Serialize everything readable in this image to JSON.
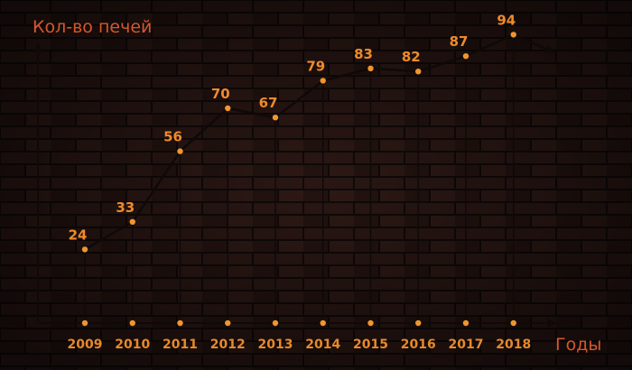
{
  "colors": {
    "line": "#0f0908",
    "marker": "#f0962e",
    "label": "#f08a2a",
    "tick": "#e7892c",
    "title": "#d6572c",
    "brick_dark": "#1e120f",
    "brick_mortar": "#0f0a09"
  },
  "chart_data": {
    "type": "line",
    "title": "",
    "xlabel": "Годы",
    "ylabel": "Кол-во печей",
    "categories": [
      "2009",
      "2010",
      "2011",
      "2012",
      "2013",
      "2014",
      "2015",
      "2016",
      "2017",
      "2018"
    ],
    "series": [
      {
        "values": [
          24,
          33,
          56,
          70,
          67,
          79,
          83,
          82,
          87,
          94
        ]
      }
    ],
    "value_labels": [
      "24",
      "33",
      "56",
      "70",
      "67",
      "79",
      "83",
      "82",
      "87",
      "94"
    ],
    "ylim": [
      0,
      100
    ],
    "grid": false,
    "legend": "none"
  }
}
